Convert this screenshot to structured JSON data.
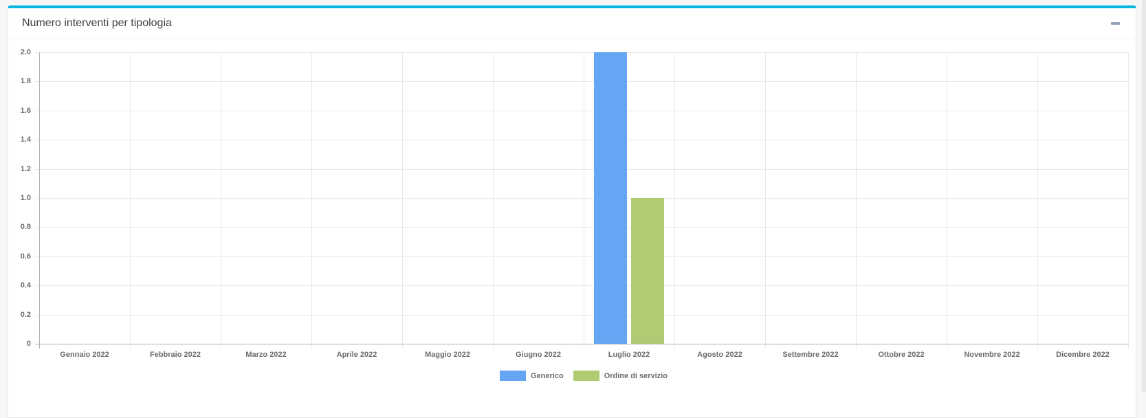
{
  "panel": {
    "title": "Numero interventi per tipologia",
    "accent_color": "#00b6e3"
  },
  "colors": {
    "page_background": "#f6f6f6",
    "card_background": "#ffffff",
    "card_border": "#e7e7e7",
    "axis_line": "#b1b1b1",
    "gridline": "#e9e9e9",
    "tick_label": "#6b6b6b",
    "title_text": "#3f3f3f",
    "collapse_icon": "#93a0b8"
  },
  "chart_data": {
    "type": "bar",
    "title": "Numero interventi per tipologia",
    "categories": [
      "Gennaio 2022",
      "Febbraio 2022",
      "Marzo 2022",
      "Aprile 2022",
      "Maggio 2022",
      "Giugno 2022",
      "Luglio 2022",
      "Agosto 2022",
      "Settembre 2022",
      "Ottobre 2022",
      "Novembre 2022",
      "Dicembre 2022"
    ],
    "series": [
      {
        "name": "Generico",
        "color": "#64a6f4",
        "values": [
          0,
          0,
          0,
          0,
          0,
          0,
          2,
          0,
          0,
          0,
          0,
          0
        ]
      },
      {
        "name": "Ordine di servizio",
        "color": "#b1cb73",
        "values": [
          0,
          0,
          0,
          0,
          0,
          0,
          1,
          0,
          0,
          0,
          0,
          0
        ]
      }
    ],
    "xlabel": "",
    "ylabel": "",
    "ylim": [
      0,
      2
    ],
    "ytick_labels": [
      "0",
      "0.2",
      "0.4",
      "0.6",
      "0.8",
      "1.0",
      "1.2",
      "1.4",
      "1.6",
      "1.8",
      "2.0"
    ],
    "grid": true,
    "legend_position": "bottom"
  }
}
